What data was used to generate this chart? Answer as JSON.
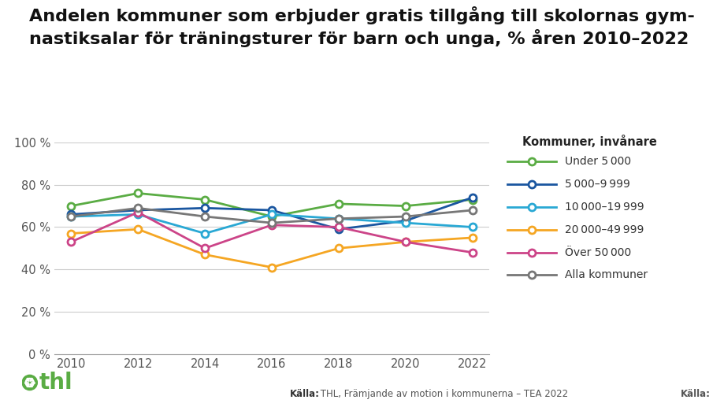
{
  "title": "Andelen kommuner som erbjuder gratis tillgång till skolornas gym-\nnastiksalar för träningsturer för barn och unga, % åren 2010–2022",
  "years": [
    2010,
    2012,
    2014,
    2016,
    2018,
    2020,
    2022
  ],
  "series": [
    {
      "label": "Under 5 000",
      "color": "#5aac44",
      "values": [
        70,
        76,
        73,
        65,
        71,
        70,
        73
      ]
    },
    {
      "label": "5 000–9 999",
      "color": "#1a56a0",
      "values": [
        66,
        68,
        69,
        68,
        59,
        63,
        74
      ]
    },
    {
      "label": "10 000–19 999",
      "color": "#29a8d4",
      "values": [
        65,
        66,
        57,
        66,
        64,
        62,
        60
      ]
    },
    {
      "label": "20 000–49 999",
      "color": "#f5a623",
      "values": [
        57,
        59,
        47,
        41,
        50,
        53,
        55
      ]
    },
    {
      "label": "Över 50 000",
      "color": "#cc4488",
      "values": [
        53,
        67,
        50,
        61,
        60,
        53,
        48
      ]
    },
    {
      "label": "Alla kommuner",
      "color": "#777777",
      "values": [
        65,
        69,
        65,
        62,
        64,
        65,
        68
      ]
    }
  ],
  "ylim": [
    0,
    100
  ],
  "yticks": [
    0,
    20,
    40,
    60,
    80,
    100
  ],
  "ytick_labels": [
    "0 %",
    "20 %",
    "40 %",
    "60 %",
    "80 %",
    "100 %"
  ],
  "legend_title": "Kommuner, invånare",
  "source_bold": "Källa:",
  "source_rest": " THL, Främjande av motion i kommunerna – TEA 2022",
  "background_color": "#ffffff",
  "grid_color": "#cccccc",
  "title_fontsize": 16,
  "legend_fontsize": 10,
  "tick_fontsize": 10.5
}
